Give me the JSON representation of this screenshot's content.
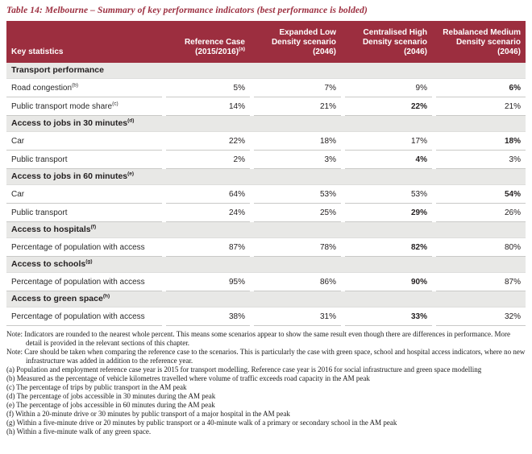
{
  "title": "Table 14: Melbourne – Summary of key performance indicators (best performance is bolded)",
  "accent_color": "#9c2e3f",
  "section_bg_color": "#e8e8e6",
  "table": {
    "columns": [
      {
        "label": "Key statistics",
        "sup": ""
      },
      {
        "label": "Reference Case (2015/2016)",
        "sup": "(a)"
      },
      {
        "label": "Expanded Low Density scenario (2046)",
        "sup": ""
      },
      {
        "label": "Centralised High Density scenario (2046)",
        "sup": ""
      },
      {
        "label": "Rebalanced Medium Density scenario (2046)",
        "sup": ""
      }
    ],
    "rows": [
      {
        "type": "section",
        "label": "Transport performance",
        "sup": ""
      },
      {
        "type": "data",
        "label": "Road congestion",
        "sup": "(b)",
        "values": [
          "5%",
          "7%",
          "9%",
          "6%"
        ],
        "bold": 3
      },
      {
        "type": "data",
        "label": "Public transport mode share",
        "sup": "(c)",
        "values": [
          "14%",
          "21%",
          "22%",
          "21%"
        ],
        "bold": 2
      },
      {
        "type": "section",
        "label": "Access to jobs in 30 minutes",
        "sup": "(d)"
      },
      {
        "type": "data",
        "label": "Car",
        "sup": "",
        "values": [
          "22%",
          "18%",
          "17%",
          "18%"
        ],
        "bold": 3
      },
      {
        "type": "data",
        "label": "Public transport",
        "sup": "",
        "values": [
          "2%",
          "3%",
          "4%",
          "3%"
        ],
        "bold": 2
      },
      {
        "type": "section",
        "label": "Access to jobs in 60 minutes",
        "sup": "(e)"
      },
      {
        "type": "data",
        "label": "Car",
        "sup": "",
        "values": [
          "64%",
          "53%",
          "53%",
          "54%"
        ],
        "bold": 3
      },
      {
        "type": "data",
        "label": "Public transport",
        "sup": "",
        "values": [
          "24%",
          "25%",
          "29%",
          "26%"
        ],
        "bold": 2
      },
      {
        "type": "section",
        "label": "Access to hospitals",
        "sup": "(f)"
      },
      {
        "type": "data",
        "label": "Percentage of population with access",
        "sup": "",
        "values": [
          "87%",
          "78%",
          "82%",
          "80%"
        ],
        "bold": 2
      },
      {
        "type": "section",
        "label": "Access to schools",
        "sup": "(g)"
      },
      {
        "type": "data",
        "label": "Percentage of population with access",
        "sup": "",
        "values": [
          "95%",
          "86%",
          "90%",
          "87%"
        ],
        "bold": 2
      },
      {
        "type": "section",
        "label": "Access to green space",
        "sup": "(h)"
      },
      {
        "type": "data",
        "label": "Percentage of population with access",
        "sup": "",
        "values": [
          "38%",
          "31%",
          "33%",
          "32%"
        ],
        "bold": 2
      }
    ]
  },
  "footnotes": [
    {
      "type": "note",
      "text": "Note: Indicators are rounded to the nearest whole percent. This means some scenarios appear to show the same result even though there are differences in performance. More detail is provided in the relevant sections of this chapter."
    },
    {
      "type": "note",
      "text": "Note: Care should be taken when comparing the reference case to the scenarios. This is particularly the case with green space, school and hospital access indicators, where no new infrastructure was added in addition to the reference year."
    },
    {
      "type": "fn",
      "text": "(a) Population and employment reference case year is 2015 for transport modelling. Reference case year is 2016 for social infrastructure and green space modelling"
    },
    {
      "type": "fn",
      "text": "(b) Measured as the percentage of vehicle kilometres travelled where volume of traffic exceeds road capacity in the AM peak"
    },
    {
      "type": "fn",
      "text": "(c) The percentage of trips by public transport in the AM peak"
    },
    {
      "type": "fn",
      "text": "(d) The percentage of jobs accessible in 30 minutes during the AM peak"
    },
    {
      "type": "fn",
      "text": "(e) The percentage of jobs accessible in 60 minutes during the AM peak"
    },
    {
      "type": "fn",
      "text": "(f) Within a 20-minute drive or 30 minutes by public transport of a major hospital in the AM peak"
    },
    {
      "type": "fn",
      "text": "(g) Within a five-minute drive or 20 minutes by public transport or a 40-minute walk of a primary or secondary school in the AM peak"
    },
    {
      "type": "fn",
      "text": "(h) Within a five-minute walk of any green space."
    }
  ]
}
